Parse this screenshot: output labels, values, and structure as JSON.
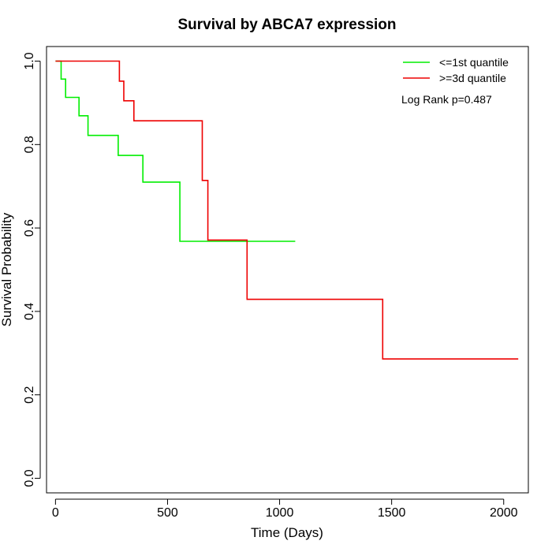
{
  "chart_data": {
    "type": "line",
    "title": "Survival by ABCA7 expression",
    "xlabel": "Time (Days)",
    "ylabel": "Survival Probability",
    "xlim": [
      -40,
      2110
    ],
    "ylim": [
      -0.035,
      1.035
    ],
    "x_ticks": [
      0,
      500,
      1000,
      1500,
      2000
    ],
    "y_ticks": [
      0.0,
      0.2,
      0.4,
      0.6,
      0.8,
      1.0
    ],
    "x_tick_labels": [
      "0",
      "500",
      "1000",
      "1500",
      "2000"
    ],
    "y_tick_labels": [
      "0.0",
      "0.2",
      "0.4",
      "0.6",
      "0.8",
      "1.0"
    ],
    "grid": false,
    "legend_position": "top-right",
    "annotation": "Log Rank p=0.487",
    "series": [
      {
        "name": "<=1st quantile",
        "color": "#00ee00",
        "step": true,
        "points": [
          [
            0,
            1.0
          ],
          [
            25,
            1.0
          ],
          [
            25,
            0.957
          ],
          [
            45,
            0.957
          ],
          [
            45,
            0.913
          ],
          [
            105,
            0.913
          ],
          [
            105,
            0.869
          ],
          [
            145,
            0.869
          ],
          [
            145,
            0.822
          ],
          [
            280,
            0.822
          ],
          [
            280,
            0.774
          ],
          [
            390,
            0.774
          ],
          [
            390,
            0.71
          ],
          [
            555,
            0.71
          ],
          [
            555,
            0.568
          ],
          [
            1070,
            0.568
          ]
        ]
      },
      {
        "name": ">=3d quantile",
        "color": "#ee0000",
        "step": true,
        "points": [
          [
            0,
            1.0
          ],
          [
            285,
            1.0
          ],
          [
            285,
            0.952
          ],
          [
            305,
            0.952
          ],
          [
            305,
            0.905
          ],
          [
            350,
            0.905
          ],
          [
            350,
            0.857
          ],
          [
            655,
            0.857
          ],
          [
            655,
            0.714
          ],
          [
            680,
            0.714
          ],
          [
            680,
            0.571
          ],
          [
            855,
            0.571
          ],
          [
            855,
            0.429
          ],
          [
            1460,
            0.429
          ],
          [
            1460,
            0.286
          ],
          [
            2065,
            0.286
          ]
        ]
      }
    ]
  }
}
